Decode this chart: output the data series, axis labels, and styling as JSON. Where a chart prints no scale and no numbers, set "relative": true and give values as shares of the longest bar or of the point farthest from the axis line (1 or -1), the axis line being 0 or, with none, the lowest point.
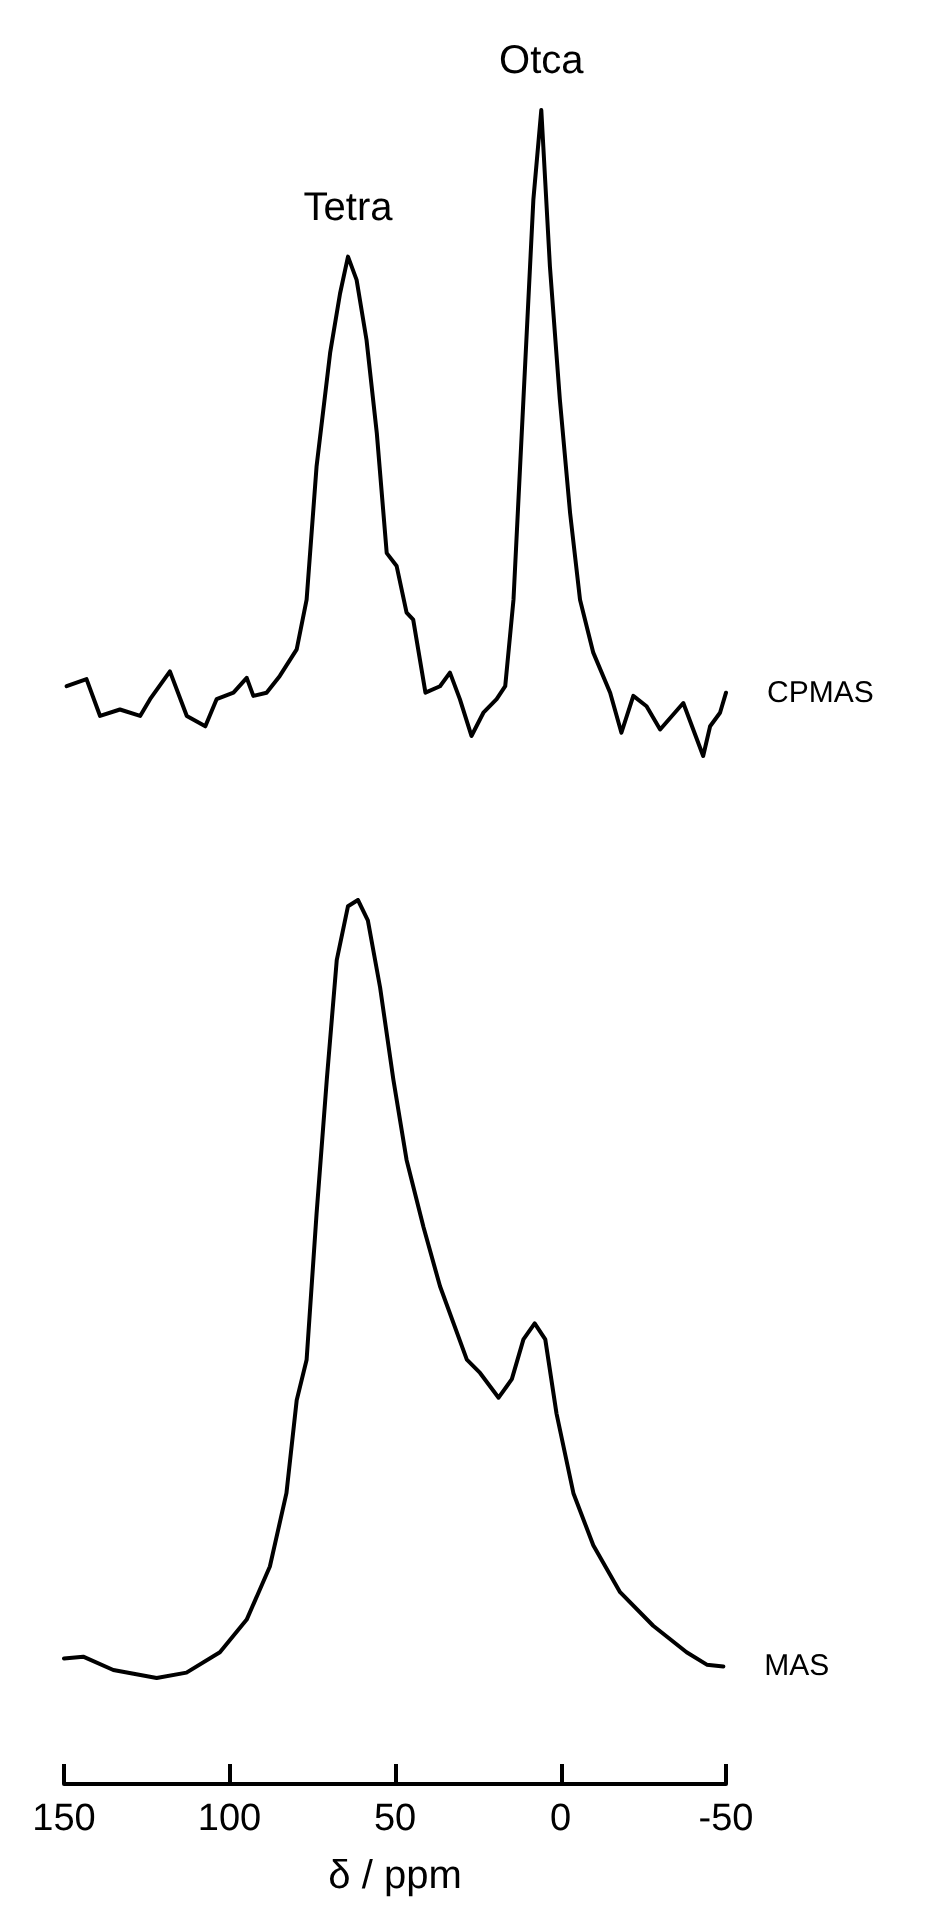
{
  "chart_data": [
    {
      "type": "line",
      "relative": true,
      "xlim": [
        150,
        -50
      ],
      "tick_labels": false,
      "marker": "none",
      "line_style": "solid",
      "annotations": [
        {
          "text": "Tetra",
          "x": 64.2,
          "y": 0.773
        },
        {
          "text": "Otca",
          "x": 5.8,
          "y": 1.0
        }
      ],
      "series": [
        {
          "name": "CPMAS",
          "color": "#000000",
          "x": [
            149.2,
            143.2,
            139.1,
            133.1,
            127.0,
            124.0,
            118.0,
            112.9,
            107.3,
            103.9,
            98.8,
            94.8,
            92.8,
            88.8,
            84.8,
            79.7,
            76.7,
            73.7,
            69.6,
            66.6,
            64.2,
            61.6,
            58.6,
            55.5,
            52.5,
            49.5,
            46.5,
            44.5,
            40.8,
            36.4,
            33.4,
            30.4,
            26.9,
            23.3,
            19.3,
            16.7,
            14.2,
            11.2,
            8.2,
            5.8,
            3.2,
            0.2,
            -2.9,
            -5.9,
            -9.9,
            -15.0,
            -18.4,
            -22.0,
            -26.0,
            -30.1,
            -37.1,
            -43.1,
            -45.2,
            -48.2,
            -50.0
          ],
          "values": [
            0.108,
            0.119,
            0.062,
            0.072,
            0.062,
            0.088,
            0.131,
            0.062,
            0.046,
            0.088,
            0.098,
            0.121,
            0.093,
            0.098,
            0.124,
            0.165,
            0.242,
            0.448,
            0.624,
            0.716,
            0.773,
            0.737,
            0.644,
            0.5,
            0.314,
            0.294,
            0.222,
            0.211,
            0.098,
            0.108,
            0.129,
            0.088,
            0.031,
            0.067,
            0.088,
            0.108,
            0.242,
            0.552,
            0.861,
            1.0,
            0.758,
            0.552,
            0.376,
            0.242,
            0.16,
            0.098,
            0.036,
            0.093,
            0.077,
            0.041,
            0.082,
            0.0,
            0.046,
            0.067,
            0.098
          ]
        }
      ]
    },
    {
      "type": "line",
      "relative": true,
      "xlim": [
        150,
        -50
      ],
      "xticks": [
        150,
        100,
        50,
        0,
        -50
      ],
      "xlabel": "δ / ppm",
      "marker": "none",
      "line_style": "solid",
      "series": [
        {
          "name": "MAS",
          "color": "#000000",
          "x": [
            150.0,
            144.2,
            135.1,
            122.0,
            113.0,
            102.9,
            94.8,
            87.8,
            82.8,
            79.7,
            76.7,
            73.7,
            70.6,
            67.6,
            64.2,
            61.2,
            58.2,
            54.5,
            50.5,
            46.5,
            41.4,
            36.4,
            28.3,
            24.3,
            18.7,
            14.7,
            11.2,
            7.8,
            4.6,
            1.2,
            -3.9,
            -9.9,
            -18.0,
            -28.0,
            -38.1,
            -44.2,
            -49.2
          ],
          "values": [
            0.142,
            0.144,
            0.129,
            0.12,
            0.126,
            0.149,
            0.186,
            0.246,
            0.329,
            0.434,
            0.48,
            0.645,
            0.797,
            0.932,
            0.993,
            1.0,
            0.977,
            0.901,
            0.797,
            0.706,
            0.63,
            0.563,
            0.48,
            0.465,
            0.437,
            0.458,
            0.503,
            0.521,
            0.503,
            0.419,
            0.329,
            0.27,
            0.217,
            0.179,
            0.149,
            0.135,
            0.133
          ]
        }
      ]
    }
  ]
}
